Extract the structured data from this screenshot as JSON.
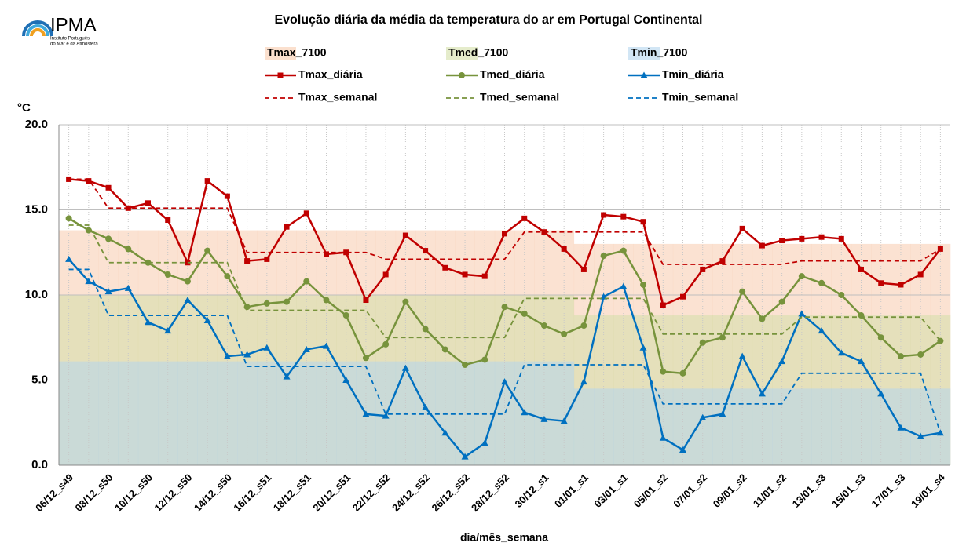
{
  "logo": {
    "name": "IPMA",
    "subtitle": [
      "Instituto Português",
      "do Mar e da Atmosfera"
    ]
  },
  "chart_data": {
    "type": "line",
    "title": "Evolução diária da média da temperatura do ar em Portugal Continental",
    "y_unit": "°C",
    "x_label": "dia/mês_semana",
    "categories": [
      "06/12_s49",
      null,
      "08/12_s50",
      null,
      "10/12_s50",
      null,
      "12/12_s50",
      null,
      "14/12_s50",
      null,
      "16/12_s51",
      null,
      "18/12_s51",
      null,
      "20/12_s51",
      null,
      "22/12_s52",
      null,
      "24/12_s52",
      null,
      "26/12_s52",
      null,
      "28/12_s52",
      null,
      "30/12_s1",
      null,
      "01/01_s1",
      null,
      "03/01_s1",
      null,
      "05/01_s2",
      null,
      "07/01_s2",
      null,
      "09/01_s2",
      null,
      "11/01_s2",
      null,
      "13/01_s3",
      null,
      "15/01_s3",
      null,
      "17/01_s3",
      null,
      "19/01_s4"
    ],
    "ylim": [
      0,
      20
    ],
    "yticks": [
      {
        "value": 0,
        "label": "0.0"
      },
      {
        "value": 5,
        "label": "5.0"
      },
      {
        "value": 10,
        "label": "10.0"
      },
      {
        "value": 15,
        "label": "15.0"
      },
      {
        "value": 20,
        "label": "20.0"
      }
    ],
    "grid": true,
    "series": [
      {
        "name": "Tmax_7100",
        "type": "area",
        "color": "#f8cbad",
        "values": [
          13.8,
          13.8,
          13.8,
          13.8,
          13.8,
          13.8,
          13.8,
          13.8,
          13.8,
          13.8,
          13.8,
          13.8,
          13.8,
          13.8,
          13.8,
          13.8,
          13.8,
          13.8,
          13.8,
          13.8,
          13.8,
          13.8,
          13.8,
          13.8,
          13.8,
          13.8,
          13.0,
          13.0,
          13.0,
          13.0,
          13.0,
          13.0,
          13.0,
          13.0,
          13.0,
          13.0,
          13.0,
          13.0,
          13.0,
          13.0,
          13.0,
          13.0,
          13.0,
          13.0,
          13.0
        ]
      },
      {
        "name": "Tmed_7100",
        "type": "area",
        "color": "#d4dfa8",
        "values": [
          10.0,
          10.0,
          10.0,
          10.0,
          10.0,
          10.0,
          10.0,
          10.0,
          10.0,
          10.0,
          10.0,
          10.0,
          10.0,
          10.0,
          10.0,
          10.0,
          10.0,
          10.0,
          10.0,
          10.0,
          10.0,
          10.0,
          10.0,
          10.0,
          10.0,
          10.0,
          8.8,
          8.8,
          8.8,
          8.8,
          8.8,
          8.8,
          8.8,
          8.8,
          8.8,
          8.8,
          8.8,
          8.8,
          8.8,
          8.8,
          8.8,
          8.8,
          8.8,
          8.8,
          8.8
        ]
      },
      {
        "name": "Tmin_7100",
        "type": "area",
        "color": "#b4d6ee",
        "values": [
          6.1,
          6.1,
          6.1,
          6.1,
          6.1,
          6.1,
          6.1,
          6.1,
          6.1,
          6.1,
          6.1,
          6.1,
          6.1,
          6.1,
          6.1,
          6.1,
          6.1,
          6.1,
          6.1,
          6.1,
          6.1,
          6.1,
          6.1,
          6.1,
          6.1,
          6.1,
          4.5,
          4.5,
          4.5,
          4.5,
          4.5,
          4.5,
          4.5,
          4.5,
          4.5,
          4.5,
          4.5,
          4.5,
          4.5,
          4.5,
          4.5,
          4.5,
          4.5,
          4.5,
          4.5
        ]
      },
      {
        "name": "Tmax_diária",
        "type": "line",
        "marker": "square",
        "color": "#c00000",
        "values": [
          16.8,
          16.7,
          16.3,
          15.1,
          15.4,
          14.4,
          11.9,
          16.7,
          15.8,
          12.0,
          12.1,
          14.0,
          14.8,
          12.4,
          12.5,
          9.7,
          11.2,
          13.5,
          12.6,
          11.6,
          11.2,
          11.1,
          13.6,
          14.5,
          13.7,
          12.7,
          11.5,
          14.7,
          14.6,
          14.3,
          9.4,
          9.9,
          11.5,
          12.0,
          13.9,
          12.9,
          13.2,
          13.3,
          13.4,
          13.3,
          11.5,
          10.7,
          10.6,
          11.2,
          12.7
        ]
      },
      {
        "name": "Tmed_diária",
        "type": "line",
        "marker": "circle",
        "color": "#77933c",
        "values": [
          14.5,
          13.8,
          13.3,
          12.7,
          11.9,
          11.2,
          10.8,
          12.6,
          11.1,
          9.3,
          9.5,
          9.6,
          10.8,
          9.7,
          8.8,
          6.3,
          7.1,
          9.6,
          8.0,
          6.8,
          5.9,
          6.2,
          9.3,
          8.9,
          8.2,
          7.7,
          8.2,
          12.3,
          12.6,
          10.6,
          5.5,
          5.4,
          7.2,
          7.5,
          10.2,
          8.6,
          9.6,
          11.1,
          10.7,
          10.0,
          8.8,
          7.5,
          6.4,
          6.5,
          7.3
        ]
      },
      {
        "name": "Tmin_diária",
        "type": "line",
        "marker": "triangle",
        "color": "#0070c0",
        "values": [
          12.1,
          10.8,
          10.2,
          10.4,
          8.4,
          7.9,
          9.7,
          8.5,
          6.4,
          6.5,
          6.9,
          5.2,
          6.8,
          7.0,
          5.0,
          3.0,
          2.9,
          5.7,
          3.4,
          1.9,
          0.5,
          1.3,
          4.9,
          3.1,
          2.7,
          2.6,
          4.9,
          9.9,
          10.5,
          6.9,
          1.6,
          0.9,
          2.8,
          3.0,
          6.4,
          4.2,
          6.1,
          8.9,
          7.9,
          6.6,
          6.1,
          4.2,
          2.2,
          1.7,
          1.9
        ]
      },
      {
        "name": "Tmax_semanal",
        "type": "line",
        "dashed": true,
        "color": "#c00000",
        "values": [
          16.8,
          16.8,
          15.1,
          15.1,
          15.1,
          15.1,
          15.1,
          15.1,
          15.1,
          12.5,
          12.5,
          12.5,
          12.5,
          12.5,
          12.5,
          12.5,
          12.1,
          12.1,
          12.1,
          12.1,
          12.1,
          12.1,
          12.1,
          13.7,
          13.7,
          13.7,
          13.7,
          13.7,
          13.7,
          13.7,
          11.8,
          11.8,
          11.8,
          11.8,
          11.8,
          11.8,
          11.8,
          12.0,
          12.0,
          12.0,
          12.0,
          12.0,
          12.0,
          12.0,
          12.7
        ]
      },
      {
        "name": "Tmed_semanal",
        "type": "line",
        "dashed": true,
        "color": "#77933c",
        "values": [
          14.1,
          14.1,
          11.9,
          11.9,
          11.9,
          11.9,
          11.9,
          11.9,
          11.9,
          9.1,
          9.1,
          9.1,
          9.1,
          9.1,
          9.1,
          9.1,
          7.5,
          7.5,
          7.5,
          7.5,
          7.5,
          7.5,
          7.5,
          9.8,
          9.8,
          9.8,
          9.8,
          9.8,
          9.8,
          9.8,
          7.7,
          7.7,
          7.7,
          7.7,
          7.7,
          7.7,
          7.7,
          8.7,
          8.7,
          8.7,
          8.7,
          8.7,
          8.7,
          8.7,
          7.3
        ]
      },
      {
        "name": "Tmin_semanal",
        "type": "line",
        "dashed": true,
        "color": "#0070c0",
        "values": [
          11.5,
          11.5,
          8.8,
          8.8,
          8.8,
          8.8,
          8.8,
          8.8,
          8.8,
          5.8,
          5.8,
          5.8,
          5.8,
          5.8,
          5.8,
          5.8,
          3.0,
          3.0,
          3.0,
          3.0,
          3.0,
          3.0,
          3.0,
          5.9,
          5.9,
          5.9,
          5.9,
          5.9,
          5.9,
          5.9,
          3.6,
          3.6,
          3.6,
          3.6,
          3.6,
          3.6,
          3.6,
          5.4,
          5.4,
          5.4,
          5.4,
          5.4,
          5.4,
          5.4,
          1.9
        ]
      }
    ]
  }
}
